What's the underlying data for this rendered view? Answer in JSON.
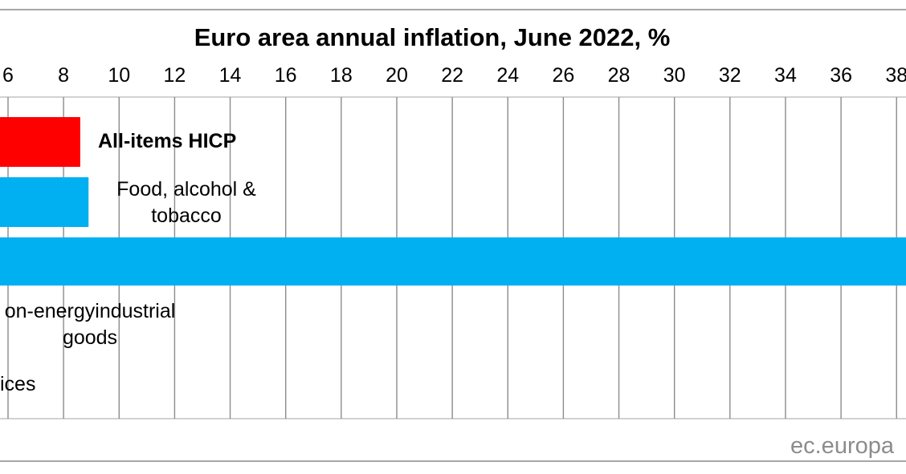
{
  "chart_data": {
    "type": "bar",
    "orientation": "horizontal",
    "title": "Euro area annual inflation, June 2022, %",
    "x_ticks": [
      6,
      8,
      10,
      12,
      14,
      16,
      18,
      20,
      22,
      24,
      26,
      28,
      30,
      32,
      34,
      36,
      38
    ],
    "xlim": [
      5.6,
      38.4
    ],
    "grid": true,
    "categories": [
      {
        "label_lines": [
          "All-items HICP"
        ],
        "value": 8.6,
        "color": "#ff0000",
        "bold": true
      },
      {
        "label_lines": [
          "Food, alcohol &",
          "tobacco"
        ],
        "value": 8.9,
        "color": "#00b0f0",
        "bold": false
      },
      {
        "label_lines": [],
        "value": 41.9,
        "color": "#00b0f0",
        "bold": false
      },
      {
        "label_lines": [
          "on-energyindustrial",
          "goods"
        ],
        "value": null,
        "color": "#00b0f0",
        "bold": false
      },
      {
        "label_lines": [
          "ices"
        ],
        "value": null,
        "color": "#00b0f0",
        "bold": false
      }
    ]
  },
  "footer": {
    "source": "ec.europa"
  }
}
